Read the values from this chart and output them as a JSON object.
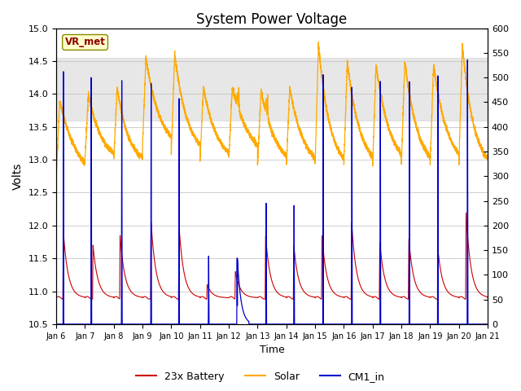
{
  "title": "System Power Voltage",
  "xlabel": "Time",
  "ylabel": "Volts",
  "ylim_left": [
    10.5,
    15.0
  ],
  "ylim_right": [
    0,
    600
  ],
  "x_tick_labels": [
    "Jan 6",
    "Jan 7",
    "Jan 8",
    "Jan 9",
    "Jan 10",
    "Jan 11",
    "Jan 12",
    "Jan 13",
    "Jan 14",
    "Jan 15",
    "Jan 16",
    "Jan 17",
    "Jan 18",
    "Jan 19",
    "Jan 20",
    "Jan 21"
  ],
  "color_battery": "#cc0000",
  "color_solar": "#ffaa00",
  "color_cm1": "#0000cc",
  "annotation_text": "VR_met",
  "annotation_color": "#8b0000",
  "annotation_bg": "#ffffcc",
  "legend_labels": [
    "23x Battery",
    "Solar",
    "CM1_in"
  ],
  "shading_ylim": [
    13.6,
    14.55
  ],
  "title_fontsize": 12
}
